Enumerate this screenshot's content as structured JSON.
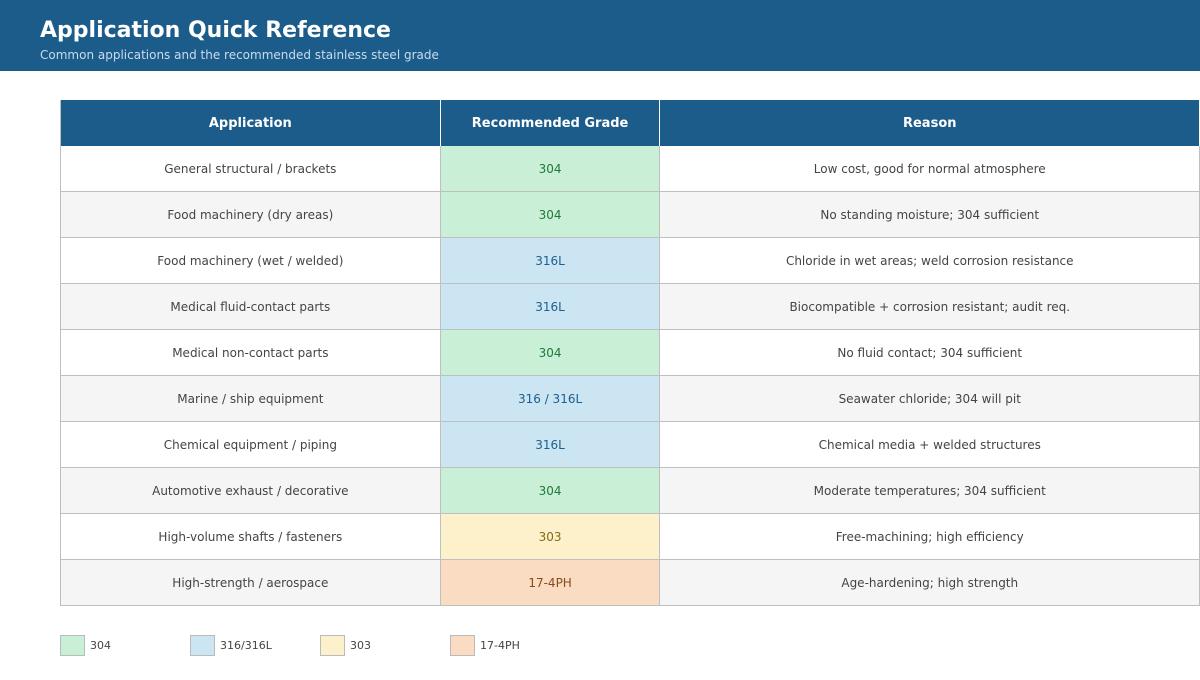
{
  "header": {
    "title": "Application Quick Reference",
    "subtitle": "Common applications and the recommended stainless steel grade"
  },
  "table": {
    "columns": [
      "Application",
      "Recommended Grade",
      "Reason"
    ],
    "rows": [
      {
        "application": "General structural / brackets",
        "grade": "304",
        "grade_class": "grade-304",
        "reason": "Low cost, good for normal atmosphere"
      },
      {
        "application": "Food machinery (dry areas)",
        "grade": "304",
        "grade_class": "grade-304",
        "reason": "No standing moisture; 304 sufficient"
      },
      {
        "application": "Food machinery (wet / welded)",
        "grade": "316L",
        "grade_class": "grade-316",
        "reason": "Chloride in wet areas; weld corrosion resistance"
      },
      {
        "application": "Medical fluid-contact parts",
        "grade": "316L",
        "grade_class": "grade-316",
        "reason": "Biocompatible + corrosion resistant; audit req."
      },
      {
        "application": "Medical non-contact parts",
        "grade": "304",
        "grade_class": "grade-304",
        "reason": "No fluid contact; 304 sufficient"
      },
      {
        "application": "Marine / ship equipment",
        "grade": "316 / 316L",
        "grade_class": "grade-316",
        "reason": "Seawater chloride; 304 will pit"
      },
      {
        "application": "Chemical equipment / piping",
        "grade": "316L",
        "grade_class": "grade-316",
        "reason": "Chemical media + welded structures"
      },
      {
        "application": "Automotive exhaust / decorative",
        "grade": "304",
        "grade_class": "grade-304",
        "reason": "Moderate temperatures; 304 sufficient"
      },
      {
        "application": "High-volume shafts / fasteners",
        "grade": "303",
        "grade_class": "grade-303",
        "reason": "Free-machining; high efficiency"
      },
      {
        "application": "High-strength / aerospace",
        "grade": "17-4PH",
        "grade_class": "grade-17",
        "reason": "Age-hardening; high strength"
      }
    ]
  },
  "legend": [
    {
      "label": "304",
      "color": "#c9f0d6"
    },
    {
      "label": "316/316L",
      "color": "#cbe5f3"
    },
    {
      "label": "303",
      "color": "#fcf1cb"
    },
    {
      "label": "17-4PH",
      "color": "#f9dcc2"
    }
  ]
}
